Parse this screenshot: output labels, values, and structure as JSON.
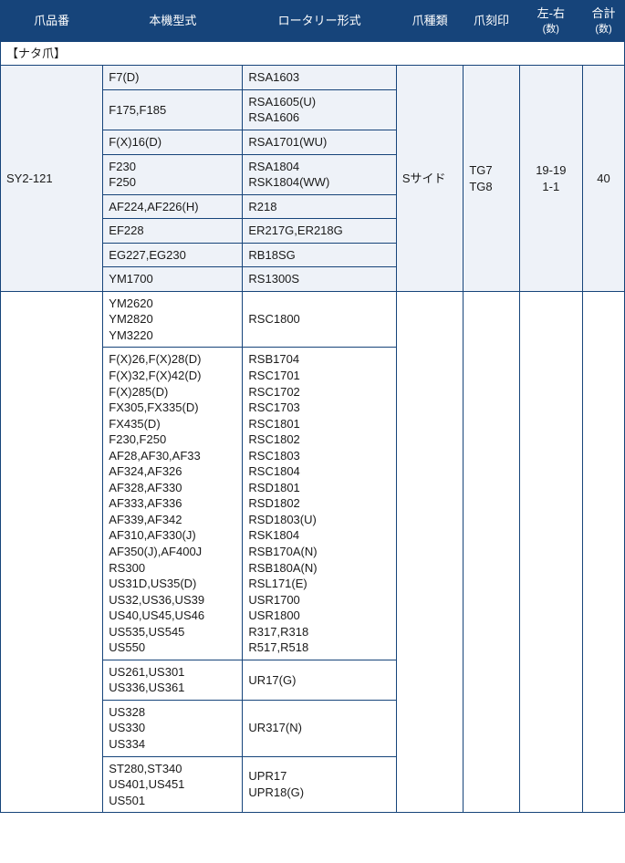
{
  "colors": {
    "header_bg": "#16447a",
    "header_fg": "#ffffff",
    "border": "#16447a",
    "alt_row_bg": "#eef2f8",
    "text": "#1a1a1a",
    "bg": "#ffffff"
  },
  "headers": {
    "c0": "爪品番",
    "c1": "本機型式",
    "c2": "ロータリー形式",
    "c3": "爪種類",
    "c4": "爪刻印",
    "c5a": "左-右",
    "c5b": "(数)",
    "c6a": "合計",
    "c6b": "(数)"
  },
  "section_label": "【ナタ爪】",
  "group1": {
    "partno": "SY2-121",
    "type": "Sサイド",
    "stamp": "TG7\nTG8",
    "lr": "19-19\n1-1",
    "total": "40",
    "rows": [
      {
        "m": "F7(D)",
        "r": "RSA1603"
      },
      {
        "m": "F175,F185",
        "r": "RSA1605(U)\nRSA1606"
      },
      {
        "m": "F(X)16(D)",
        "r": "RSA1701(WU)"
      },
      {
        "m": "F230\nF250",
        "r": "RSA1804\nRSK1804(WW)"
      },
      {
        "m": "AF224,AF226(H)",
        "r": "R218"
      },
      {
        "m": "EF228",
        "r": "ER217G,ER218G"
      },
      {
        "m": "EG227,EG230",
        "r": "RB18SG"
      },
      {
        "m": "YM1700",
        "r": "RS1300S"
      }
    ]
  },
  "group2": {
    "rows": [
      {
        "m": "YM2620\nYM2820\nYM3220",
        "r": "RSC1800"
      },
      {
        "m": "F(X)26,F(X)28(D)\nF(X)32,F(X)42(D)\nF(X)285(D)\nFX305,FX335(D)\nFX435(D)\nF230,F250\nAF28,AF30,AF33\nAF324,AF326\nAF328,AF330\nAF333,AF336\nAF339,AF342\nAF310,AF330(J)\nAF350(J),AF400J\nRS300\nUS31D,US35(D)\nUS32,US36,US39\nUS40,US45,US46\nUS535,US545\nUS550",
        "r": "RSB1704\nRSC1701\nRSC1702\nRSC1703\nRSC1801\nRSC1802\nRSC1803\nRSC1804\nRSD1801\nRSD1802\nRSD1803(U)\nRSK1804\nRSB170A(N)\nRSB180A(N)\nRSL171(E)\nUSR1700\nUSR1800\nR317,R318\nR517,R518"
      },
      {
        "m": "US261,US301\nUS336,US361",
        "r": "UR17(G)"
      },
      {
        "m": "US328\nUS330\nUS334",
        "r": "UR317(N)"
      },
      {
        "m": "ST280,ST340\nUS401,US451\nUS501",
        "r": "UPR17\nUPR18(G)"
      }
    ]
  }
}
